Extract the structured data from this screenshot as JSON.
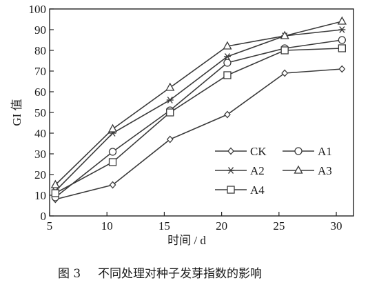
{
  "chart_data": {
    "type": "line",
    "x": [
      5.5,
      10.5,
      15.5,
      20.5,
      25.5,
      30.5
    ],
    "xlabel": "时间 / d",
    "ylabel": "GI 值",
    "xlim": [
      5,
      31.5
    ],
    "ylim": [
      0,
      100
    ],
    "xticks": [
      5,
      10,
      15,
      20,
      25,
      30
    ],
    "yticks": [
      0,
      10,
      20,
      30,
      40,
      50,
      60,
      70,
      80,
      90,
      100
    ],
    "grid": false,
    "legend_position": "bottom-right",
    "series": [
      {
        "name": "CK",
        "marker": "diamond",
        "values": [
          8,
          15,
          37,
          49,
          69,
          71
        ]
      },
      {
        "name": "A1",
        "marker": "circle",
        "values": [
          9,
          31,
          51,
          74,
          81,
          85
        ]
      },
      {
        "name": "A2",
        "marker": "asterisk",
        "values": [
          12,
          40,
          56,
          77,
          87,
          90
        ]
      },
      {
        "name": "A3",
        "marker": "triangle",
        "values": [
          15,
          42,
          62,
          82,
          87,
          94
        ]
      },
      {
        "name": "A4",
        "marker": "square",
        "values": [
          11,
          26,
          50,
          68,
          80,
          81
        ]
      }
    ]
  },
  "caption": {
    "label": "图 3",
    "text": "不同处理对种子发芽指数的影响"
  },
  "colors": {
    "line": "#3a3a3a",
    "axis": "#222222"
  }
}
